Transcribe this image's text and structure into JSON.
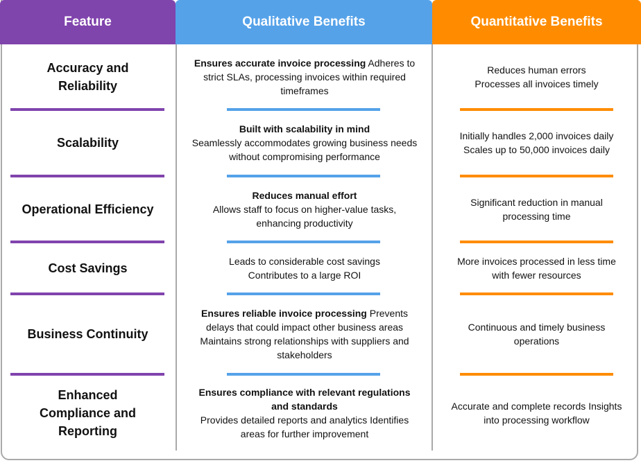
{
  "headers": {
    "feature": "Feature",
    "qualitative": "Qualitative Benefits",
    "quantitative": "Quantitative Benefits"
  },
  "colors": {
    "feature": "#8044ad",
    "qualitative": "#55a2e9",
    "quantitative": "#ff8c00"
  },
  "rows": [
    {
      "feature": "Accuracy and Reliability",
      "qual_lead": "Ensures accurate invoice processing",
      "qual_text": " Adheres to strict SLAs, processing invoices within required timeframes",
      "quant": "Reduces human errors\nProcesses all invoices timely"
    },
    {
      "feature": "Scalability",
      "qual_lead": "Built with scalability in mind",
      "qual_text": "Seamlessly accommodates growing business needs without compromising performance",
      "quant": "Initially handles 2,000 invoices daily\nScales up to 50,000 invoices daily"
    },
    {
      "feature": "Operational Efficiency",
      "qual_lead": "Reduces manual effort",
      "qual_text": "Allows staff to focus on higher-value tasks, enhancing productivity",
      "quant": "Significant reduction in manual processing time"
    },
    {
      "feature": "Cost Savings",
      "qual_lead": "",
      "qual_text": "Leads to considerable cost savings\nContributes to a large ROI",
      "quant": "More invoices processed in less time with fewer resources"
    },
    {
      "feature": "Business Continuity",
      "qual_lead": "Ensures reliable invoice processing",
      "qual_text": " Prevents delays that could impact other business areas Maintains strong relationships with suppliers and stakeholders",
      "quant": "Continuous and timely business operations"
    },
    {
      "feature": "Enhanced Compliance and Reporting",
      "qual_lead": "Ensures compliance with relevant regulations and standards",
      "qual_text": "Provides detailed reports and analytics Identifies areas for further improvement",
      "quant": "Accurate and complete records Insights into processing workflow"
    }
  ]
}
